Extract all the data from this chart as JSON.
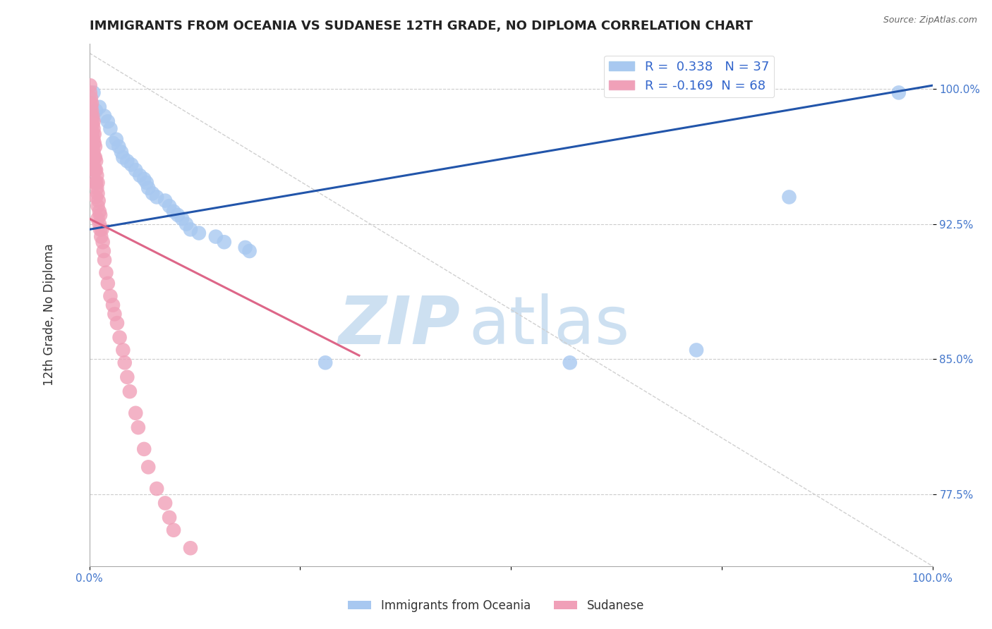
{
  "title": "IMMIGRANTS FROM OCEANIA VS SUDANESE 12TH GRADE, NO DIPLOMA CORRELATION CHART",
  "source": "Source: ZipAtlas.com",
  "ylabel": "12th Grade, No Diploma",
  "xmin": 0.0,
  "xmax": 1.0,
  "ymin": 0.735,
  "ymax": 1.025,
  "xtick_positions": [
    0.0,
    0.25,
    0.5,
    0.75,
    1.0
  ],
  "xticklabels": [
    "0.0%",
    "",
    "",
    "",
    "100.0%"
  ],
  "ytick_positions": [
    0.775,
    0.85,
    0.925,
    1.0
  ],
  "ytick_labels": [
    "77.5%",
    "85.0%",
    "92.5%",
    "100.0%"
  ],
  "blue_color": "#a8c8f0",
  "pink_color": "#f0a0b8",
  "blue_line_color": "#2255aa",
  "pink_line_color": "#dd6688",
  "diag_line_color": "#d0d0d0",
  "R_blue": 0.338,
  "N_blue": 37,
  "R_pink": -0.169,
  "N_pink": 68,
  "legend_label_blue": "Immigrants from Oceania",
  "legend_label_pink": "Sudanese",
  "blue_trendline_x": [
    0.0,
    1.0
  ],
  "blue_trendline_y": [
    0.922,
    1.002
  ],
  "pink_trendline_x": [
    0.0,
    0.32
  ],
  "pink_trendline_y": [
    0.928,
    0.852
  ],
  "blue_scatter_x": [
    0.005,
    0.008,
    0.012,
    0.018,
    0.022,
    0.025,
    0.028,
    0.032,
    0.035,
    0.038,
    0.04,
    0.045,
    0.05,
    0.055,
    0.06,
    0.065,
    0.068,
    0.07,
    0.075,
    0.08,
    0.09,
    0.095,
    0.1,
    0.105,
    0.11,
    0.115,
    0.12,
    0.13,
    0.15,
    0.16,
    0.185,
    0.19,
    0.28,
    0.57,
    0.72,
    0.83,
    0.96
  ],
  "blue_scatter_y": [
    0.998,
    0.988,
    0.99,
    0.985,
    0.982,
    0.978,
    0.97,
    0.972,
    0.968,
    0.965,
    0.962,
    0.96,
    0.958,
    0.955,
    0.952,
    0.95,
    0.948,
    0.945,
    0.942,
    0.94,
    0.938,
    0.935,
    0.932,
    0.93,
    0.928,
    0.925,
    0.922,
    0.92,
    0.918,
    0.915,
    0.912,
    0.91,
    0.848,
    0.848,
    0.855,
    0.94,
    0.998
  ],
  "pink_scatter_x": [
    0.001,
    0.001,
    0.001,
    0.002,
    0.002,
    0.002,
    0.002,
    0.003,
    0.003,
    0.003,
    0.003,
    0.004,
    0.004,
    0.004,
    0.004,
    0.005,
    0.005,
    0.005,
    0.005,
    0.005,
    0.006,
    0.006,
    0.006,
    0.006,
    0.007,
    0.007,
    0.007,
    0.007,
    0.008,
    0.008,
    0.008,
    0.008,
    0.009,
    0.009,
    0.01,
    0.01,
    0.01,
    0.01,
    0.011,
    0.012,
    0.012,
    0.013,
    0.013,
    0.014,
    0.015,
    0.016,
    0.017,
    0.018,
    0.02,
    0.022,
    0.025,
    0.028,
    0.03,
    0.033,
    0.036,
    0.04,
    0.042,
    0.045,
    0.048,
    0.055,
    0.058,
    0.065,
    0.07,
    0.08,
    0.09,
    0.095,
    0.1,
    0.12
  ],
  "pink_scatter_y": [
    1.002,
    0.998,
    0.992,
    0.995,
    0.99,
    0.985,
    0.98,
    0.992,
    0.988,
    0.982,
    0.975,
    0.985,
    0.98,
    0.975,
    0.968,
    0.982,
    0.978,
    0.972,
    0.965,
    0.958,
    0.975,
    0.97,
    0.962,
    0.955,
    0.968,
    0.962,
    0.955,
    0.948,
    0.96,
    0.955,
    0.948,
    0.94,
    0.952,
    0.945,
    0.948,
    0.942,
    0.935,
    0.928,
    0.938,
    0.932,
    0.925,
    0.93,
    0.922,
    0.918,
    0.922,
    0.915,
    0.91,
    0.905,
    0.898,
    0.892,
    0.885,
    0.88,
    0.875,
    0.87,
    0.862,
    0.855,
    0.848,
    0.84,
    0.832,
    0.82,
    0.812,
    0.8,
    0.79,
    0.778,
    0.77,
    0.762,
    0.755,
    0.745
  ]
}
